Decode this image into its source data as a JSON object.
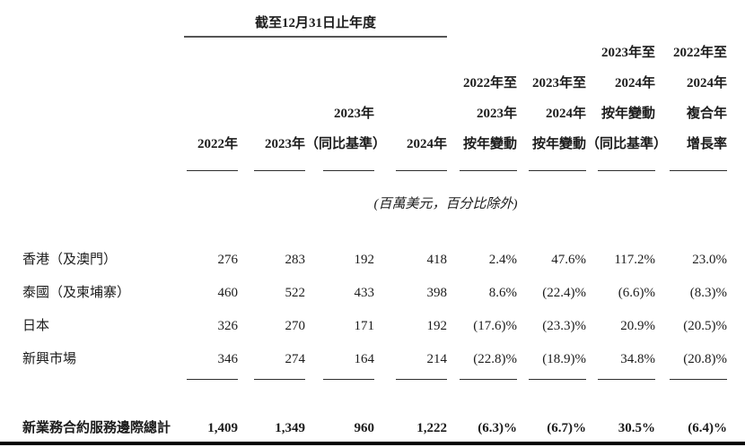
{
  "colors": {
    "text": "#1c1c1c",
    "rule": "#2e2e2e",
    "title_rule": "#555555",
    "bottom_bar": "#000000"
  },
  "table": {
    "period_header": "截至12月31日止年度",
    "unit_note": "(百萬美元，百分比除外)",
    "columns": [
      {
        "lines": [
          "2022年"
        ]
      },
      {
        "lines": [
          "2023年"
        ]
      },
      {
        "lines": [
          "2023年",
          "（同比基準）"
        ]
      },
      {
        "lines": [
          "2024年"
        ]
      },
      {
        "lines": [
          "2022年至",
          "2023年",
          "按年變動"
        ]
      },
      {
        "lines": [
          "2023年至",
          "2024年",
          "按年變動"
        ]
      },
      {
        "lines": [
          "2023年至",
          "2024年",
          "按年變動",
          "（同比基準）"
        ]
      },
      {
        "lines": [
          "2022年至",
          "2024年",
          "複合年",
          "增長率"
        ]
      }
    ],
    "rows": [
      {
        "label": "香港（及澳門）",
        "values": [
          "276",
          "283",
          "192",
          "418",
          "2.4%",
          "47.6%",
          "117.2%",
          "23.0%"
        ]
      },
      {
        "label": "泰國（及柬埔寨）",
        "values": [
          "460",
          "522",
          "433",
          "398",
          "8.6%",
          "(22.4)%",
          "(6.6)%",
          "(8.3)%"
        ]
      },
      {
        "label": "日本",
        "values": [
          "326",
          "270",
          "171",
          "192",
          "(17.6)%",
          "(23.3)%",
          "20.9%",
          "(20.5)%"
        ]
      },
      {
        "label": "新興市場",
        "values": [
          "346",
          "274",
          "164",
          "214",
          "(22.8)%",
          "(18.9)%",
          "34.8%",
          "(20.8)%"
        ]
      }
    ],
    "total_row": {
      "label": "新業務合約服務邊際總計",
      "values": [
        "1,409",
        "1,349",
        "960",
        "1,222",
        "(6.3)%",
        "(6.7)%",
        "30.5%",
        "(6.4)%"
      ]
    }
  }
}
